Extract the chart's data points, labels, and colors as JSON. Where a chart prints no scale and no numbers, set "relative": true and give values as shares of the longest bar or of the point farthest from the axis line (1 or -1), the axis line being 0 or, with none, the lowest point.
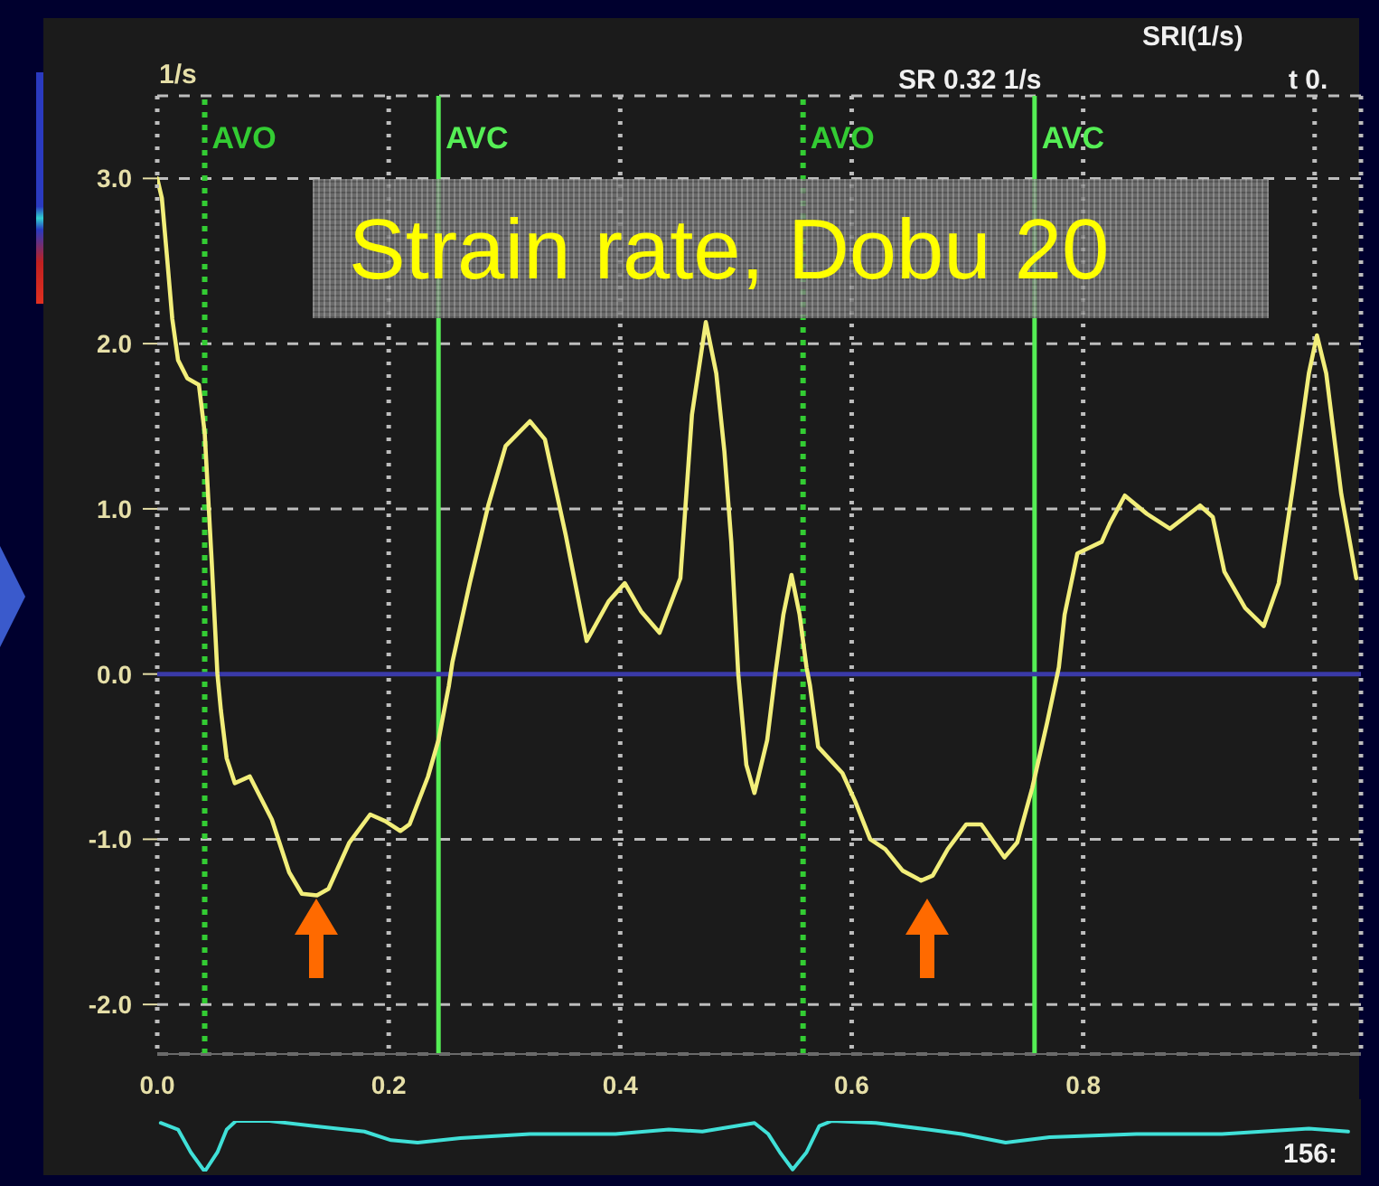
{
  "chart_data": [
    {
      "type": "line",
      "title": "Strain rate, Dobu 20",
      "ylabel": "1/s",
      "annotations": [
        "SRI(1/s)",
        "SR 0.32 1/s",
        "t 0."
      ],
      "x": [
        0,
        0.004,
        0.009,
        0.013,
        0.018,
        0.026,
        0.036,
        0.041,
        0.047,
        0.052,
        0.055,
        0.06,
        0.067,
        0.08,
        0.088,
        0.099,
        0.114,
        0.125,
        0.138,
        0.148,
        0.166,
        0.184,
        0.197,
        0.21,
        0.218,
        0.234,
        0.243,
        0.252,
        0.255,
        0.27,
        0.286,
        0.301,
        0.322,
        0.335,
        0.353,
        0.371,
        0.39,
        0.404,
        0.418,
        0.434,
        0.452,
        0.462,
        0.474,
        0.483,
        0.49,
        0.496,
        0.502,
        0.509,
        0.516,
        0.527,
        0.534,
        0.541,
        0.548,
        0.555,
        0.561,
        0.564,
        0.571,
        0.592,
        0.603,
        0.616,
        0.629,
        0.644,
        0.66,
        0.67,
        0.683,
        0.699,
        0.712,
        0.732,
        0.743,
        0.756,
        0.769,
        0.779,
        0.784,
        0.795,
        0.816,
        0.823,
        0.836,
        0.855,
        0.875,
        0.901,
        0.912,
        0.922,
        0.94,
        0.956,
        0.969,
        0.982,
        0.995,
        1.002,
        1.01,
        1.023,
        1.036
      ],
      "series": [
        {
          "color": "#f2ee7a",
          "values": [
            3.0,
            2.88,
            2.48,
            2.15,
            1.9,
            1.79,
            1.75,
            1.46,
            0.69,
            0.0,
            -0.22,
            -0.51,
            -0.66,
            -0.62,
            -0.73,
            -0.88,
            -1.2,
            -1.33,
            -1.34,
            -1.3,
            -1.02,
            -0.85,
            -0.89,
            -0.95,
            -0.91,
            -0.62,
            -0.4,
            -0.07,
            0.07,
            0.55,
            1.02,
            1.38,
            1.53,
            1.42,
            0.84,
            0.2,
            0.44,
            0.55,
            0.38,
            0.25,
            0.58,
            1.57,
            2.13,
            1.82,
            1.35,
            0.8,
            0.0,
            -0.55,
            -0.72,
            -0.4,
            0.0,
            0.36,
            0.6,
            0.36,
            0.04,
            -0.07,
            -0.44,
            -0.6,
            -0.77,
            -1.0,
            -1.06,
            -1.19,
            -1.25,
            -1.22,
            -1.06,
            -0.91,
            -0.91,
            -1.11,
            -1.02,
            -0.69,
            -0.29,
            0.04,
            0.36,
            0.73,
            0.8,
            0.91,
            1.08,
            0.97,
            0.88,
            1.02,
            0.95,
            0.62,
            0.4,
            0.29,
            0.55,
            1.17,
            1.82,
            2.05,
            1.82,
            1.09,
            0.58
          ]
        }
      ],
      "xlim": [
        0,
        1.04
      ],
      "ylim": [
        -2.3,
        3.5
      ],
      "xticks": [
        {
          "value": 0,
          "label": "0.0"
        },
        0.2,
        0.4,
        0.6,
        0.8,
        {
          "value": 1,
          "label": null
        }
      ],
      "yticks": [
        {
          "value": -2,
          "label": "-2.0"
        },
        {
          "value": -1,
          "label": "-1.0"
        },
        {
          "value": 0,
          "label": "0.0"
        },
        {
          "value": 1,
          "label": "1.0"
        },
        {
          "value": 2,
          "label": "2.0"
        },
        {
          "value": 3,
          "label": "3.0"
        }
      ],
      "grid": true,
      "ref_lines": [
        {
          "axis": "x",
          "value": 0.041,
          "label": "AVO",
          "color": "#33cc33",
          "line_style": "dotted"
        },
        {
          "axis": "x",
          "value": 0.243,
          "label": "AVC",
          "color": "#55ee55",
          "line_style": "solid"
        },
        {
          "axis": "x",
          "value": 0.558,
          "label": "AVO",
          "color": "#33cc33",
          "line_style": "dotted"
        },
        {
          "axis": "x",
          "value": 0.758,
          "label": "AVC",
          "color": "#55ee55",
          "line_style": "solid"
        },
        {
          "axis": "y",
          "value": 0,
          "color": "#3a3aa8",
          "line_style": "solid"
        }
      ]
    },
    {
      "type": "line",
      "annotations": [
        "156:"
      ],
      "x": [
        0.003,
        0.018,
        0.029,
        0.041,
        0.052,
        0.06,
        0.068,
        0.097,
        0.134,
        0.179,
        0.202,
        0.225,
        0.262,
        0.322,
        0.396,
        0.442,
        0.471,
        0.516,
        0.528,
        0.538,
        0.549,
        0.561,
        0.572,
        0.583,
        0.621,
        0.666,
        0.695,
        0.733,
        0.771,
        0.846,
        0.92,
        0.995,
        1.029
      ],
      "values": [
        0.96,
        0.83,
        0.38,
        0.0,
        0.38,
        0.83,
        1.0,
        1.0,
        0.9,
        0.79,
        0.62,
        0.57,
        0.66,
        0.74,
        0.74,
        0.83,
        0.79,
        0.96,
        0.74,
        0.38,
        0.04,
        0.38,
        0.9,
        1.0,
        0.96,
        0.83,
        0.74,
        0.57,
        0.68,
        0.74,
        0.74,
        0.85,
        0.79
      ],
      "color": "#40e0d8",
      "relative": true,
      "xlim": [
        0,
        1.04
      ],
      "tick_labels": false
    }
  ]
}
